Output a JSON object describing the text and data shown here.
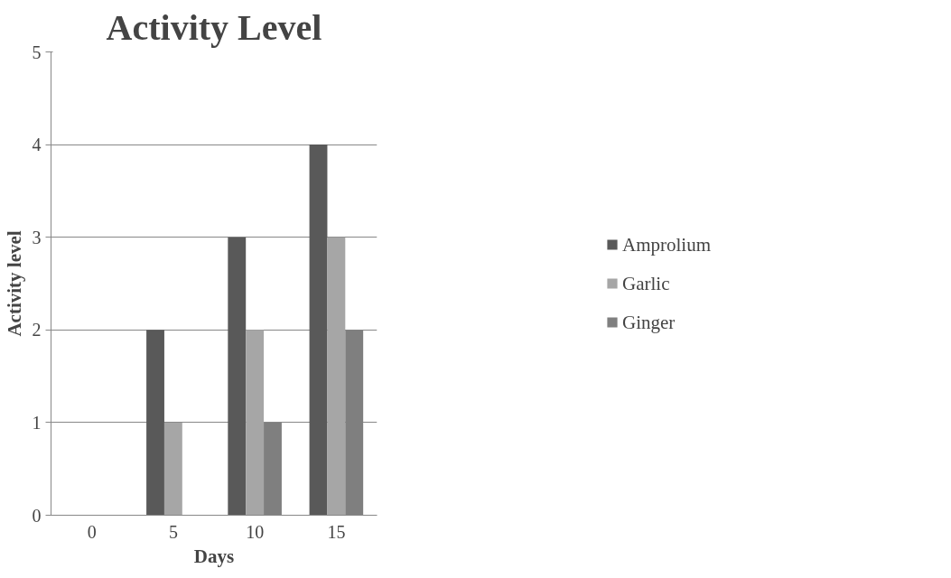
{
  "chart_data": {
    "type": "bar",
    "title": "Activity Level",
    "xlabel": "Days",
    "ylabel": "Activity level",
    "categories": [
      "0",
      "5",
      "10",
      "15"
    ],
    "series": [
      {
        "name": "Amprolium",
        "color": "#595959",
        "values": [
          0,
          2,
          3,
          4
        ]
      },
      {
        "name": "Garlic",
        "color": "#a6a6a6",
        "values": [
          0,
          1,
          2,
          3
        ]
      },
      {
        "name": "Ginger",
        "color": "#7f7f7f",
        "values": [
          0,
          0,
          1,
          2
        ]
      }
    ],
    "ylim": [
      0,
      5
    ],
    "yticks": [
      0,
      1,
      2,
      3,
      4,
      5
    ],
    "grid": "y",
    "legend": "right"
  }
}
